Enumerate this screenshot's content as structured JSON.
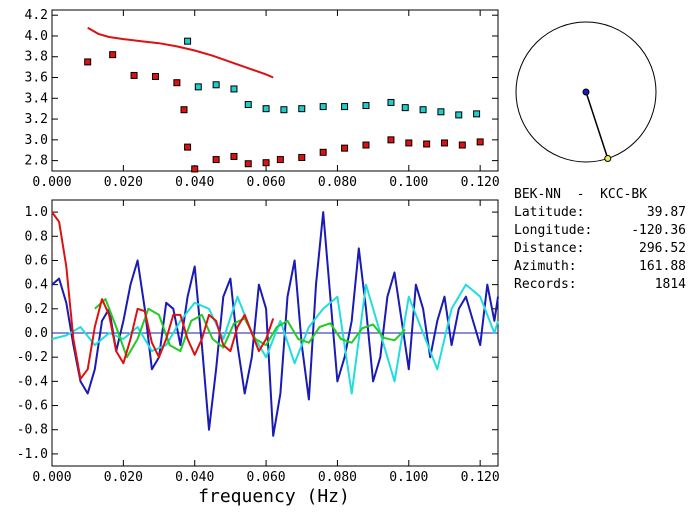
{
  "station_pair": "BEK-NN  -  KCC-BK",
  "info": [
    {
      "label": "Latitude:",
      "value": "39.87"
    },
    {
      "label": "Longitude:",
      "value": "-120.36"
    },
    {
      "label": "Distance:",
      "value": "296.52"
    },
    {
      "label": "Azimuth:",
      "value": "161.88"
    },
    {
      "label": "Records:",
      "value": "1814"
    }
  ],
  "azimuth_deg": 161.88,
  "chart_data": [
    {
      "type": "scatter",
      "title": "",
      "xlabel": "",
      "ylabel": "",
      "xlim": [
        0.0,
        0.125
      ],
      "ylim": [
        2.7,
        4.25
      ],
      "x_ticks": [
        "0.000",
        "0.020",
        "0.040",
        "0.060",
        "0.080",
        "0.100",
        "0.120"
      ],
      "y_ticks": [
        "2.8",
        "3.0",
        "3.2",
        "3.4",
        "3.6",
        "3.8",
        "4.0",
        "4.2"
      ],
      "series": [
        {
          "type": "line",
          "color": "#dd1111",
          "x": [
            0.01,
            0.013,
            0.016,
            0.02,
            0.025,
            0.03,
            0.035,
            0.04,
            0.045,
            0.05,
            0.055,
            0.06,
            0.062
          ],
          "y": [
            4.08,
            4.02,
            3.99,
            3.97,
            3.95,
            3.93,
            3.9,
            3.86,
            3.81,
            3.75,
            3.69,
            3.63,
            3.6
          ]
        },
        {
          "type": "scatter",
          "color": "#dd1111",
          "x": [
            0.01,
            0.017,
            0.023,
            0.029,
            0.035,
            0.037,
            0.038,
            0.04,
            0.046,
            0.051,
            0.055,
            0.06,
            0.064,
            0.07,
            0.076,
            0.082,
            0.088,
            0.095,
            0.1,
            0.105,
            0.11,
            0.115,
            0.12
          ],
          "y": [
            3.75,
            3.82,
            3.62,
            3.61,
            3.55,
            3.29,
            2.93,
            2.72,
            2.81,
            2.84,
            2.77,
            2.78,
            2.81,
            2.83,
            2.88,
            2.92,
            2.95,
            3.0,
            2.97,
            2.96,
            2.97,
            2.95,
            2.98
          ]
        },
        {
          "type": "scatter",
          "color": "#22cccc",
          "x": [
            0.038,
            0.041,
            0.046,
            0.051,
            0.055,
            0.06,
            0.065,
            0.07,
            0.076,
            0.082,
            0.088,
            0.095,
            0.099,
            0.104,
            0.109,
            0.114,
            0.119
          ],
          "y": [
            3.95,
            3.51,
            3.53,
            3.49,
            3.34,
            3.3,
            3.29,
            3.3,
            3.32,
            3.32,
            3.33,
            3.36,
            3.31,
            3.29,
            3.27,
            3.24,
            3.25
          ]
        }
      ]
    },
    {
      "type": "line",
      "title": "",
      "xlabel": "frequency (Hz)",
      "ylabel": "",
      "xlim": [
        0.0,
        0.125
      ],
      "ylim": [
        -1.1,
        1.1
      ],
      "x_ticks": [
        "0.000",
        "0.020",
        "0.040",
        "0.060",
        "0.080",
        "0.100",
        "0.120"
      ],
      "y_ticks": [
        "-1.0",
        "-0.8",
        "-0.6",
        "-0.4",
        "-0.2",
        "0.0",
        "0.2",
        "0.4",
        "0.6",
        "0.8",
        "1.0"
      ],
      "series": [
        {
          "color": "#1a1ab4",
          "x": [
            0.0,
            0.002,
            0.004,
            0.006,
            0.008,
            0.01,
            0.012,
            0.014,
            0.016,
            0.018,
            0.02,
            0.022,
            0.024,
            0.026,
            0.028,
            0.03,
            0.032,
            0.034,
            0.036,
            0.038,
            0.04,
            0.042,
            0.044,
            0.046,
            0.048,
            0.05,
            0.052,
            0.054,
            0.056,
            0.058,
            0.06,
            0.062,
            0.064,
            0.066,
            0.068,
            0.07,
            0.072,
            0.074,
            0.076,
            0.078,
            0.08,
            0.082,
            0.084,
            0.086,
            0.088,
            0.09,
            0.092,
            0.094,
            0.096,
            0.098,
            0.1,
            0.102,
            0.104,
            0.106,
            0.108,
            0.11,
            0.112,
            0.114,
            0.116,
            0.118,
            0.12,
            0.122,
            0.124,
            0.125
          ],
          "y": [
            0.4,
            0.45,
            0.25,
            -0.1,
            -0.4,
            -0.5,
            -0.3,
            0.1,
            0.2,
            -0.15,
            0.1,
            0.4,
            0.6,
            0.2,
            -0.3,
            -0.2,
            0.25,
            0.2,
            -0.1,
            0.3,
            0.55,
            -0.1,
            -0.8,
            -0.3,
            0.3,
            0.45,
            -0.1,
            -0.5,
            -0.2,
            0.4,
            0.2,
            -0.85,
            -0.5,
            0.3,
            0.6,
            -0.1,
            -0.55,
            0.4,
            1.0,
            0.3,
            -0.4,
            -0.2,
            0.1,
            0.7,
            0.2,
            -0.4,
            -0.2,
            0.3,
            0.5,
            0.1,
            -0.3,
            0.4,
            0.2,
            -0.2,
            0.1,
            0.3,
            -0.1,
            0.2,
            0.3,
            0.1,
            -0.1,
            0.4,
            0.1,
            0.3
          ]
        },
        {
          "color": "#22dddd",
          "x": [
            0.0,
            0.004,
            0.008,
            0.012,
            0.016,
            0.02,
            0.024,
            0.028,
            0.032,
            0.036,
            0.04,
            0.044,
            0.048,
            0.052,
            0.056,
            0.06,
            0.064,
            0.068,
            0.072,
            0.076,
            0.08,
            0.084,
            0.088,
            0.092,
            0.096,
            0.1,
            0.104,
            0.108,
            0.112,
            0.116,
            0.12,
            0.124,
            0.125
          ],
          "y": [
            -0.05,
            -0.02,
            0.05,
            -0.1,
            0.0,
            -0.05,
            0.05,
            -0.15,
            -0.1,
            0.1,
            0.25,
            0.2,
            -0.05,
            0.3,
            0.0,
            -0.2,
            0.1,
            -0.25,
            0.05,
            0.2,
            0.3,
            -0.5,
            0.4,
            0.0,
            -0.4,
            0.3,
            0.0,
            -0.3,
            0.2,
            0.4,
            0.3,
            0.0,
            0.1
          ]
        },
        {
          "color": "#22cc22",
          "x": [
            0.012,
            0.015,
            0.018,
            0.021,
            0.024,
            0.027,
            0.03,
            0.033,
            0.036,
            0.039,
            0.042,
            0.045,
            0.048,
            0.051,
            0.054,
            0.057,
            0.06,
            0.063,
            0.066,
            0.069,
            0.072,
            0.075,
            0.078,
            0.081,
            0.084,
            0.087,
            0.09,
            0.093,
            0.096,
            0.099
          ],
          "y": [
            0.2,
            0.28,
            0.05,
            -0.2,
            -0.05,
            0.2,
            0.15,
            -0.1,
            -0.15,
            0.1,
            0.15,
            -0.05,
            -0.12,
            0.08,
            0.12,
            -0.05,
            -0.1,
            0.05,
            0.1,
            -0.05,
            -0.08,
            0.05,
            0.08,
            -0.05,
            -0.08,
            0.04,
            0.07,
            -0.04,
            -0.06,
            0.03
          ]
        },
        {
          "color": "#dd1111",
          "x": [
            0.0,
            0.002,
            0.004,
            0.006,
            0.008,
            0.01,
            0.012,
            0.014,
            0.016,
            0.018,
            0.02,
            0.022,
            0.024,
            0.026,
            0.028,
            0.03,
            0.032,
            0.034,
            0.036,
            0.038,
            0.04,
            0.042,
            0.044,
            0.046,
            0.048,
            0.05,
            0.052,
            0.054,
            0.056,
            0.058,
            0.06,
            0.062
          ],
          "y": [
            1.0,
            0.92,
            0.55,
            -0.05,
            -0.38,
            -0.3,
            0.05,
            0.28,
            0.15,
            -0.15,
            -0.25,
            -0.05,
            0.2,
            0.18,
            -0.08,
            -0.2,
            -0.05,
            0.15,
            0.15,
            -0.05,
            -0.18,
            -0.05,
            0.15,
            0.1,
            -0.1,
            -0.15,
            0.05,
            0.15,
            0.0,
            -0.15,
            -0.05,
            0.12
          ]
        }
      ]
    }
  ]
}
